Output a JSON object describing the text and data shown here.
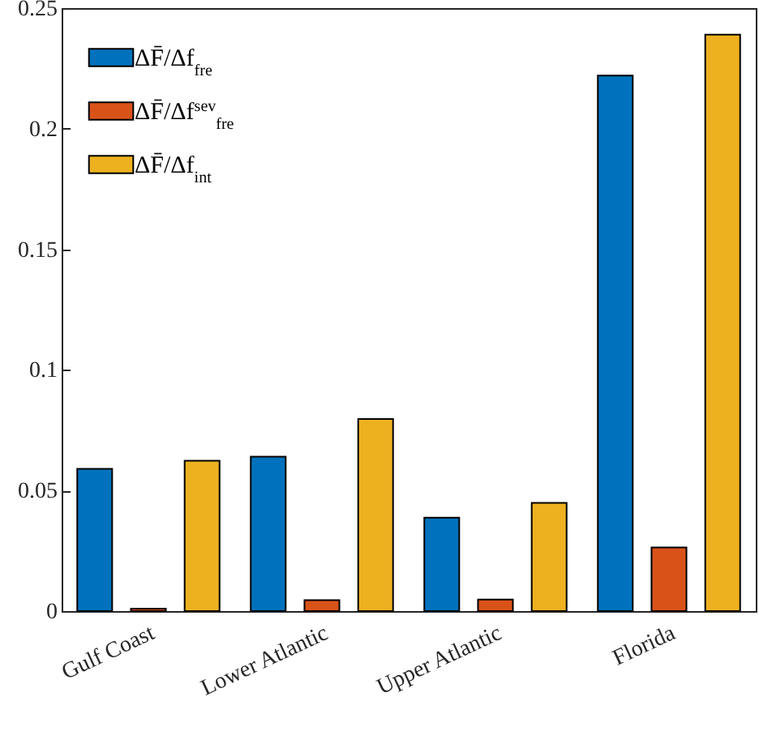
{
  "chart_data": {
    "type": "bar",
    "categories": [
      "Gulf Coast",
      "Lower Atlantic",
      "Upper Atlantic",
      "Florida"
    ],
    "series": [
      {
        "name": "ΔF̄/Δf$_{fre}$",
        "color": "#0072bd",
        "values": [
          0.059,
          0.064,
          0.0387,
          0.222
        ]
      },
      {
        "name": "ΔF̄/Δf$^{sev}$$_{fre}$",
        "color": "#d95319",
        "values": [
          0.001,
          0.0045,
          0.0048,
          0.0264
        ]
      },
      {
        "name": "ΔF̄/Δf$_{int}$",
        "color": "#edb120",
        "values": [
          0.0623,
          0.0796,
          0.0449,
          0.239
        ]
      }
    ],
    "ylim": [
      0,
      0.25
    ],
    "yticks": [
      0,
      0.05,
      0.1,
      0.15,
      0.2,
      0.25
    ],
    "grid": false,
    "legend": "top left"
  }
}
